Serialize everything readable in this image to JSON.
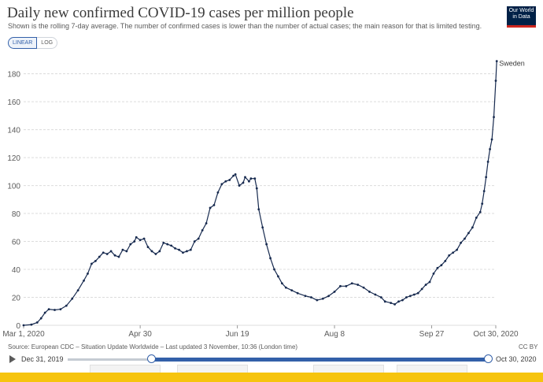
{
  "header": {
    "title": "Daily new confirmed COVID-19 cases per million people",
    "subtitle": "Shown is the rolling 7-day average. The number of confirmed cases is lower than the number of actual cases; the main reason for that is limited testing.",
    "logo_line1": "Our World",
    "logo_line2": "in Data",
    "scale_linear": "LINEAR",
    "scale_log": "LOG"
  },
  "footer": {
    "source": "Source: European CDC – Situation Update Worldwide – Last updated 3 November, 10:36 (London time)",
    "license": "CC BY",
    "timeline_start": "Dec 31, 2019",
    "timeline_end": "Oct 30, 2020"
  },
  "colors": {
    "series": "#172a4f",
    "grid": "#dcdcdc",
    "accent": "#3360a9",
    "bar": "#f6c40e"
  },
  "chart_data": {
    "type": "line",
    "title": "Daily new confirmed COVID-19 cases per million people",
    "xlabel": "",
    "ylabel": "",
    "ylim": [
      0,
      195
    ],
    "yticks": [
      0,
      20,
      40,
      60,
      80,
      100,
      120,
      140,
      160,
      180
    ],
    "xticks": [
      {
        "day": 0,
        "label": "Mar 1, 2020"
      },
      {
        "day": 60,
        "label": "Apr 30"
      },
      {
        "day": 110,
        "label": "Jun 19"
      },
      {
        "day": 160,
        "label": "Aug 8"
      },
      {
        "day": 210,
        "label": "Sep 27"
      },
      {
        "day": 243,
        "label": "Oct 30, 2020"
      }
    ],
    "xlim": [
      0,
      243
    ],
    "grid": true,
    "series": [
      {
        "name": "Sweden",
        "points": [
          [
            0,
            0
          ],
          [
            4,
            0.5
          ],
          [
            7,
            2
          ],
          [
            9,
            5
          ],
          [
            11,
            9
          ],
          [
            13,
            11.5
          ],
          [
            16,
            11
          ],
          [
            19,
            11.5
          ],
          [
            22,
            14
          ],
          [
            25,
            19
          ],
          [
            28,
            25
          ],
          [
            31,
            32
          ],
          [
            33,
            37
          ],
          [
            35,
            44
          ],
          [
            37,
            46
          ],
          [
            39,
            49
          ],
          [
            41,
            52
          ],
          [
            43,
            51
          ],
          [
            45,
            53
          ],
          [
            47,
            50
          ],
          [
            49,
            49
          ],
          [
            51,
            54
          ],
          [
            53,
            53
          ],
          [
            55,
            58
          ],
          [
            57,
            60
          ],
          [
            58,
            63
          ],
          [
            60,
            61
          ],
          [
            62,
            62
          ],
          [
            64,
            56
          ],
          [
            66,
            53
          ],
          [
            68,
            51
          ],
          [
            70,
            53
          ],
          [
            72,
            59
          ],
          [
            74,
            58
          ],
          [
            76,
            57
          ],
          [
            78,
            55
          ],
          [
            80,
            54
          ],
          [
            82,
            52
          ],
          [
            84,
            53
          ],
          [
            86,
            54
          ],
          [
            88,
            60
          ],
          [
            90,
            62
          ],
          [
            92,
            68
          ],
          [
            94,
            73
          ],
          [
            96,
            84
          ],
          [
            98,
            86
          ],
          [
            100,
            95
          ],
          [
            102,
            101
          ],
          [
            104,
            103
          ],
          [
            106,
            104
          ],
          [
            108,
            107
          ],
          [
            109,
            108
          ],
          [
            111,
            100
          ],
          [
            113,
            102
          ],
          [
            114,
            106
          ],
          [
            116,
            103
          ],
          [
            117,
            105
          ],
          [
            119,
            105
          ],
          [
            120,
            98
          ],
          [
            121,
            83
          ],
          [
            123,
            70
          ],
          [
            125,
            58
          ],
          [
            127,
            48
          ],
          [
            129,
            40
          ],
          [
            131,
            35
          ],
          [
            133,
            30
          ],
          [
            135,
            27
          ],
          [
            138,
            25
          ],
          [
            141,
            23
          ],
          [
            145,
            21
          ],
          [
            148,
            20
          ],
          [
            151,
            18
          ],
          [
            154,
            19
          ],
          [
            157,
            21
          ],
          [
            160,
            24
          ],
          [
            163,
            28
          ],
          [
            166,
            28
          ],
          [
            169,
            30
          ],
          [
            172,
            29
          ],
          [
            175,
            27
          ],
          [
            178,
            24
          ],
          [
            181,
            22
          ],
          [
            184,
            20
          ],
          [
            186,
            17
          ],
          [
            189,
            16
          ],
          [
            191,
            15
          ],
          [
            193,
            17
          ],
          [
            195,
            18
          ],
          [
            197,
            20
          ],
          [
            199,
            21
          ],
          [
            201,
            22
          ],
          [
            203,
            23
          ],
          [
            205,
            26
          ],
          [
            207,
            29
          ],
          [
            209,
            31
          ],
          [
            211,
            37
          ],
          [
            213,
            41
          ],
          [
            215,
            43
          ],
          [
            217,
            46
          ],
          [
            219,
            50
          ],
          [
            221,
            52
          ],
          [
            223,
            54
          ],
          [
            225,
            59
          ],
          [
            227,
            62
          ],
          [
            229,
            66
          ],
          [
            231,
            70
          ],
          [
            233,
            77
          ],
          [
            235,
            81
          ],
          [
            236,
            87
          ],
          [
            237,
            96
          ],
          [
            238,
            106
          ],
          [
            239,
            117
          ],
          [
            240,
            126
          ],
          [
            241,
            133
          ],
          [
            242,
            149
          ],
          [
            243,
            175
          ],
          [
            243.5,
            189
          ]
        ]
      }
    ]
  }
}
